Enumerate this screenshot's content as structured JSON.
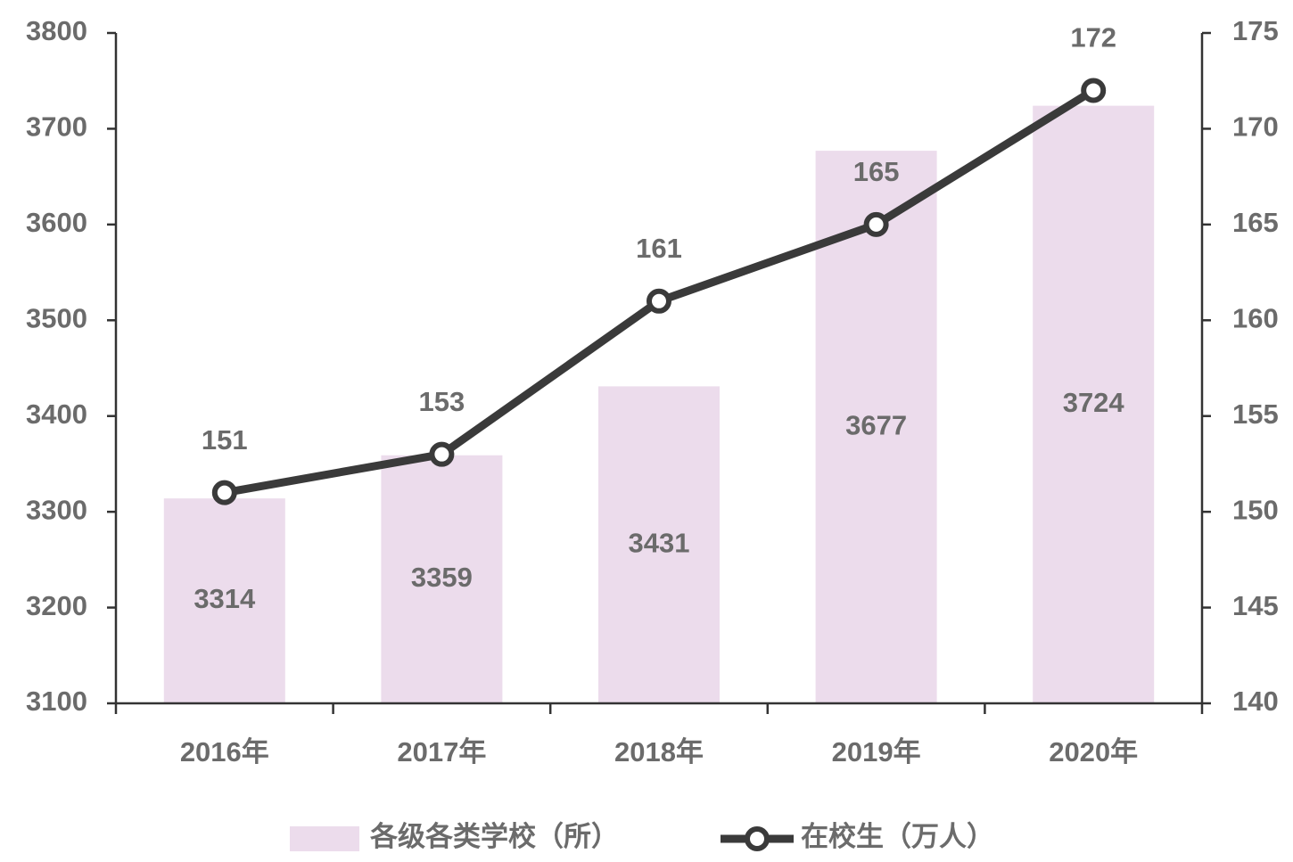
{
  "chart_data": {
    "type": "combo",
    "categories": [
      "2016年",
      "2017年",
      "2018年",
      "2019年",
      "2020年"
    ],
    "series": [
      {
        "name": "各级各类学校（所）",
        "type": "bar",
        "color": "#ecdcec",
        "values": [
          3314,
          3359,
          3431,
          3677,
          3724
        ]
      },
      {
        "name": "在校生（万人）",
        "type": "line",
        "axis": "y2",
        "color": "#3a3a3a",
        "values": [
          151,
          153,
          161,
          165,
          172
        ]
      }
    ],
    "ylim": [
      3100,
      3800
    ],
    "yticks": [
      3100,
      3200,
      3300,
      3400,
      3500,
      3600,
      3700,
      3800
    ],
    "y2lim": [
      140,
      175
    ],
    "y2ticks": [
      140,
      145,
      150,
      155,
      160,
      165,
      170,
      175
    ],
    "legend": "bottom"
  }
}
